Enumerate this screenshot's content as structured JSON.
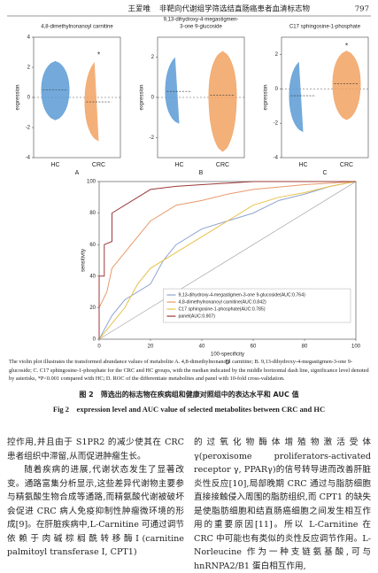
{
  "header": {
    "author": "王爱唯",
    "title": "非靶向代谢组学筛选结直肠癌患者血清标志物",
    "page": "797"
  },
  "chart_data": [
    {
      "type": "violin",
      "title": [
        "4,8-dimethylnonanoyl carnitine"
      ],
      "ylabel": "expression",
      "panel": "A",
      "categories": [
        "HC",
        "CRC"
      ],
      "colors": [
        "#5b9bd5",
        "#f2a262"
      ],
      "mins": [
        -1.5,
        -2.9
      ],
      "values": [
        0.5,
        -0.3
      ],
      "maxs": [
        2.4,
        2.5
      ],
      "significance": [
        null,
        "*"
      ],
      "ylim": [
        -4,
        4
      ],
      "yticks": [
        -4,
        -2,
        0,
        2,
        4
      ]
    },
    {
      "type": "violin",
      "title": [
        "9,13-dihydroxy-4-megastigmen-",
        "3-one 9-glucoside"
      ],
      "ylabel": "expression",
      "panel": "B",
      "categories": [
        "HC",
        "CRC"
      ],
      "colors": [
        "#5b9bd5",
        "#f2a262"
      ],
      "mins": [
        -1.3,
        -2.7
      ],
      "values": [
        0.3,
        0.1
      ],
      "maxs": [
        2.1,
        2.3
      ],
      "significance": [
        null,
        null
      ],
      "ylim": [
        -3,
        3
      ],
      "yticks": [
        -2,
        0,
        2
      ]
    },
    {
      "type": "violin",
      "title": [
        "C17 sphingosine-1-phosphate"
      ],
      "ylabel": "expression",
      "panel": "C",
      "categories": [
        "HC",
        "CRC"
      ],
      "colors": [
        "#5b9bd5",
        "#f2a262"
      ],
      "mins": [
        -2.5,
        -1.8
      ],
      "values": [
        -0.4,
        0.3
      ],
      "maxs": [
        1.7,
        2.2
      ],
      "significance": [
        null,
        "*"
      ],
      "ylim": [
        -4,
        3
      ],
      "yticks": [
        -4,
        -2,
        0,
        2
      ]
    },
    {
      "type": "roc",
      "xlabel": "100-specificity",
      "ylabel": "sensitivity",
      "panel": "D",
      "xlim": [
        0,
        100
      ],
      "ylim": [
        0,
        100
      ],
      "xticks": [
        0,
        20,
        40,
        60,
        80,
        100
      ],
      "yticks": [
        0,
        20,
        40,
        60,
        80,
        100
      ],
      "series": [
        {
          "name": "9,13-dihydroxy-4-megastigmen-3-one 9-glucoside(AUC:0.764)",
          "color": "#8fa3cf",
          "x": [
            0,
            5,
            10,
            20,
            25,
            30,
            40,
            50,
            60,
            70,
            80,
            90,
            100
          ],
          "values": [
            0,
            15,
            25,
            35,
            50,
            60,
            70,
            75,
            80,
            88,
            92,
            97,
            100
          ]
        },
        {
          "name": "4,8-dimethylnonanoyl carnitine(AUC:0.842)",
          "color": "#e89a6c",
          "x": [
            0,
            0,
            3,
            5,
            10,
            15,
            20,
            30,
            40,
            50,
            60,
            80,
            100
          ],
          "values": [
            0,
            20,
            30,
            45,
            55,
            65,
            75,
            85,
            88,
            92,
            95,
            98,
            100
          ]
        },
        {
          "name": "C17 sphingosine-1-phosphate(AUC:0.785)",
          "color": "#e8c24a",
          "x": [
            0,
            5,
            10,
            15,
            20,
            30,
            40,
            50,
            60,
            70,
            80,
            90,
            100
          ],
          "values": [
            0,
            10,
            20,
            35,
            45,
            55,
            65,
            75,
            85,
            90,
            93,
            97,
            100
          ]
        },
        {
          "name": "panel(AUC:0.907)",
          "color": "#9c3a3a",
          "x": [
            0,
            0,
            2,
            2,
            5,
            5,
            10,
            15,
            20,
            30,
            40,
            60,
            100
          ],
          "values": [
            0,
            40,
            40,
            60,
            62,
            80,
            85,
            90,
            95,
            97,
            98,
            100,
            100
          ]
        }
      ]
    }
  ],
  "caption": {
    "note": "The violin plot illustrates the transformed abundance values of metabolite A. 4,8-dimethylnonanoyl carnitine; B. 9,13-dihydroxy-4-megastigmen-3-one 9-glucoside; C. C17 sphingosine-1-phosphate for the CRC and HC groups, with the median indicated by the middle horizontal dash line, significance level denoted by asterisks, *P<0.001 compared with HC; D. ROC of the differentiate metabolites and panel with 10-fold cross-validation.",
    "cn": "图 2　筛选出的标志物在疾病组和健康对照组中的表达水平和 AUC 值",
    "en": "Fig 2　expression level and AUC value of selected metabolites between CRC and HC"
  },
  "body": {
    "left": [
      "控作用,并且由于 S1PR2 的减少使其在 CRC 患者组织中滞留,从而促进肿瘤生长。",
      "随着疾病的进展,代谢状态发生了显著改变。通路富集分析显示,这些差异代谢物主要参与精氨酸生物合成等通路,而精氨酸代谢被破坏会促进 CRC 病人免疫抑制性肿瘤微环境的形成[9]。在肝脏疾病中,L-Carnitine 可通过调节依赖于肉碱棕榈酰转移酶Ⅰ(carnitine palmitoyl transferase Ⅰ, CPT1)"
    ],
    "right": [
      "的过氧化物酶体增殖物激活受体 γ(peroxisome proliferators-activated receptor γ, PPARγ)的信号转导进而改善肝脏炎性反应[10],局部晚期 CRC 通过与脂肪细胞直接接触侵入周围的脂肪组织,而 CPT1 的缺失是使脂肪细胞和结直肠癌细胞之间发生相互作用的重要原因[11]。所以 L-Carnitine 在 CRC 中可能也有类似的炎性反应调节作用。L-Norleucine 作为一种支链氨基酸,可与 hnRNPA2/B1 蛋白相互作用,"
    ]
  }
}
